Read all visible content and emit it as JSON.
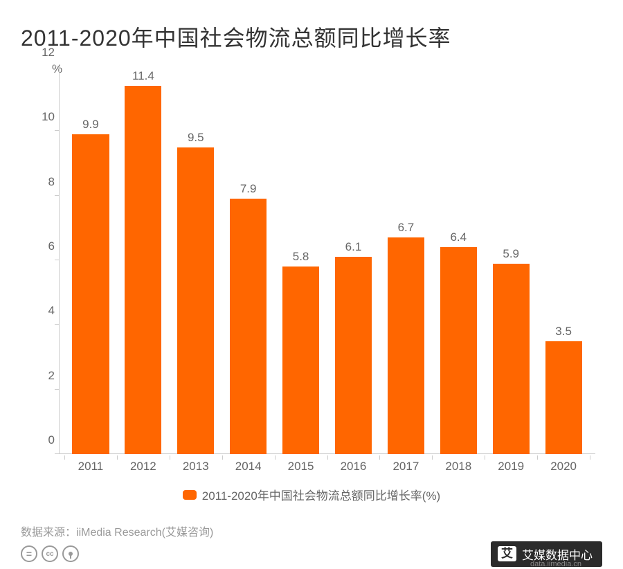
{
  "title": "2011-2020年中国社会物流总额同比增长率",
  "chart": {
    "type": "bar",
    "unit": "%",
    "categories": [
      "2011",
      "2012",
      "2013",
      "2014",
      "2015",
      "2016",
      "2017",
      "2018",
      "2019",
      "2020"
    ],
    "values": [
      9.9,
      11.4,
      9.5,
      7.9,
      5.8,
      6.1,
      6.7,
      6.4,
      5.9,
      3.5
    ],
    "bar_color": "#ff6600",
    "y_ticks": [
      0,
      2,
      4,
      6,
      8,
      10,
      12
    ],
    "y_max": 12,
    "bar_width_ratio": 0.7,
    "axis_color": "#cccccc",
    "label_color": "#666666",
    "value_label_fontsize": 17,
    "axis_label_fontsize": 17,
    "title_color": "#333333",
    "title_fontsize": 32,
    "background_color": "#ffffff"
  },
  "legend": {
    "swatch_color": "#ff6600",
    "text": "2011-2020年中国社会物流总额同比增长率(%)"
  },
  "source": {
    "label": "数据来源：",
    "value": "iiMedia Research(艾媒咨询)"
  },
  "footer": {
    "cc": [
      "=",
      "cc",
      "i"
    ],
    "brand_badge": "艾",
    "brand_text": "艾媒数据中心",
    "brand_url": "data.iimedia.cn"
  }
}
